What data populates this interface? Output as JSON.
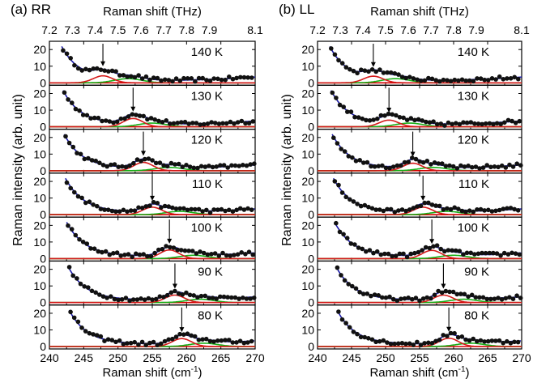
{
  "colors": {
    "points": "#111111",
    "fit_total": "#1a1aa8",
    "fit_peak1": "#d41a1a",
    "fit_peak2": "#18b018",
    "baseline": "#d40000",
    "axis": "#000000"
  },
  "shared": {
    "x_bottom_label": "Raman shift (cm",
    "x_bottom_label_sup": "-1",
    "x_bottom_label_end": ")",
    "x_top_label": "Raman shift (THz)",
    "y_label": "Raman intensity (arb. unit)",
    "x_bottom_ticks": [
      "240",
      "245",
      "250",
      "255",
      "260",
      "265",
      "270"
    ],
    "x_top_ticks": [
      "7.2",
      "7.3",
      "7.4",
      "7.5",
      "7.6",
      "7.7",
      "7.8",
      "7.9",
      "8.1"
    ],
    "y_ticks": [
      "0",
      "10",
      "20"
    ]
  },
  "chart_data": [
    {
      "panel": "(a) RR",
      "type": "scatter",
      "xlim": [
        240,
        270
      ],
      "ylim": [
        0,
        24
      ],
      "xlabel": "Raman shift (cm-1)",
      "x2label": "Raman shift (THz)",
      "ylabel": "Raman intensity (arb. unit)",
      "series": [
        {
          "temp": "140 K",
          "peak": 247.8,
          "peak2": 251.5,
          "amp": 4.2,
          "amp2": 2.5,
          "arrow_x": 247.8
        },
        {
          "temp": "130 K",
          "peak": 252.2,
          "peak2": 255.0,
          "amp": 5.0,
          "amp2": 2.2,
          "arrow_x": 252.2
        },
        {
          "temp": "120 K",
          "peak": 253.7,
          "peak2": 257.5,
          "amp": 5.0,
          "amp2": 2.0,
          "arrow_x": 253.7
        },
        {
          "temp": "110 K",
          "peak": 255.0,
          "peak2": 259.0,
          "amp": 4.5,
          "amp2": 2.0,
          "arrow_x": 255.0
        },
        {
          "temp": "100 K",
          "peak": 257.5,
          "peak2": 261.0,
          "amp": 5.2,
          "amp2": 2.0,
          "arrow_x": 257.5
        },
        {
          "temp": "90 K",
          "peak": 258.3,
          "peak2": 262.0,
          "amp": 4.5,
          "amp2": 2.0,
          "arrow_x": 258.3
        },
        {
          "temp": "80 K",
          "peak": 259.3,
          "peak2": 262.5,
          "amp": 4.8,
          "amp2": 2.0,
          "arrow_x": 259.3
        }
      ]
    },
    {
      "panel": "(b) LL",
      "type": "scatter",
      "xlim": [
        240,
        270
      ],
      "ylim": [
        0,
        24
      ],
      "xlabel": "Raman shift (cm-1)",
      "x2label": "Raman shift (THz)",
      "ylabel": "Raman intensity (arb. unit)",
      "series": [
        {
          "temp": "140 K",
          "peak": 248.2,
          "peak2": 251.5,
          "amp": 4.0,
          "amp2": 2.5,
          "arrow_x": 248.2
        },
        {
          "temp": "130 K",
          "peak": 250.5,
          "peak2": 253.5,
          "amp": 4.0,
          "amp2": 2.2,
          "arrow_x": 250.5
        },
        {
          "temp": "120 K",
          "peak": 254.0,
          "peak2": 257.0,
          "amp": 4.5,
          "amp2": 2.0,
          "arrow_x": 254.0
        },
        {
          "temp": "110 K",
          "peak": 255.5,
          "peak2": 259.0,
          "amp": 4.5,
          "amp2": 2.0,
          "arrow_x": 255.5
        },
        {
          "temp": "100 K",
          "peak": 256.8,
          "peak2": 260.0,
          "amp": 5.0,
          "amp2": 2.0,
          "arrow_x": 256.8
        },
        {
          "temp": "90 K",
          "peak": 258.5,
          "peak2": 261.5,
          "amp": 4.5,
          "amp2": 2.0,
          "arrow_x": 258.5
        },
        {
          "temp": "80 K",
          "peak": 259.3,
          "peak2": 262.5,
          "amp": 5.0,
          "amp2": 2.0,
          "arrow_x": 259.3
        }
      ]
    }
  ]
}
